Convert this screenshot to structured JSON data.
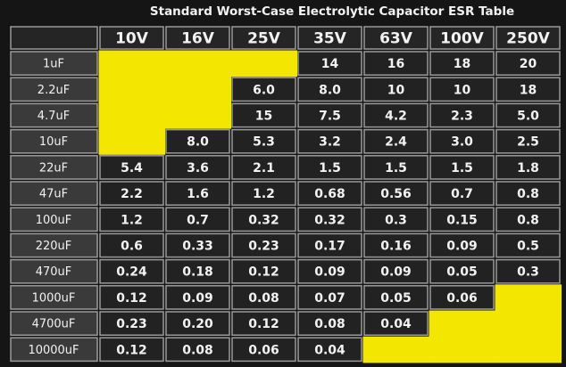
{
  "title": "Standard Worst-Case Electrolytic Capacitor ESR Table",
  "table": {
    "columns": [
      "10V",
      "16V",
      "25V",
      "35V",
      "63V",
      "100V",
      "250V"
    ],
    "rows": [
      {
        "label": "1uF",
        "cells": [
          null,
          null,
          null,
          "14",
          "16",
          "18",
          "20"
        ]
      },
      {
        "label": "2.2uF",
        "cells": [
          null,
          null,
          "6.0",
          "8.0",
          "10",
          "10",
          "18"
        ]
      },
      {
        "label": "4.7uF",
        "cells": [
          null,
          null,
          "15",
          "7.5",
          "4.2",
          "2.3",
          "5.0"
        ]
      },
      {
        "label": "10uF",
        "cells": [
          null,
          "8.0",
          "5.3",
          "3.2",
          "2.4",
          "3.0",
          "2.5"
        ]
      },
      {
        "label": "22uF",
        "cells": [
          "5.4",
          "3.6",
          "2.1",
          "1.5",
          "1.5",
          "1.5",
          "1.8"
        ]
      },
      {
        "label": "47uF",
        "cells": [
          "2.2",
          "1.6",
          "1.2",
          "0.68",
          "0.56",
          "0.7",
          "0.8"
        ]
      },
      {
        "label": "100uF",
        "cells": [
          "1.2",
          "0.7",
          "0.32",
          "0.32",
          "0.3",
          "0.15",
          "0.8"
        ]
      },
      {
        "label": "220uF",
        "cells": [
          "0.6",
          "0.33",
          "0.23",
          "0.17",
          "0.16",
          "0.09",
          "0.5"
        ]
      },
      {
        "label": "470uF",
        "cells": [
          "0.24",
          "0.18",
          "0.12",
          "0.09",
          "0.09",
          "0.05",
          "0.3"
        ]
      },
      {
        "label": "1000uF",
        "cells": [
          "0.12",
          "0.09",
          "0.08",
          "0.07",
          "0.05",
          "0.06",
          null
        ]
      },
      {
        "label": "4700uF",
        "cells": [
          "0.23",
          "0.20",
          "0.12",
          "0.08",
          "0.04",
          null,
          null
        ]
      },
      {
        "label": "10000uF",
        "cells": [
          "0.12",
          "0.08",
          "0.06",
          "0.04",
          null,
          null,
          null
        ]
      }
    ]
  }
}
